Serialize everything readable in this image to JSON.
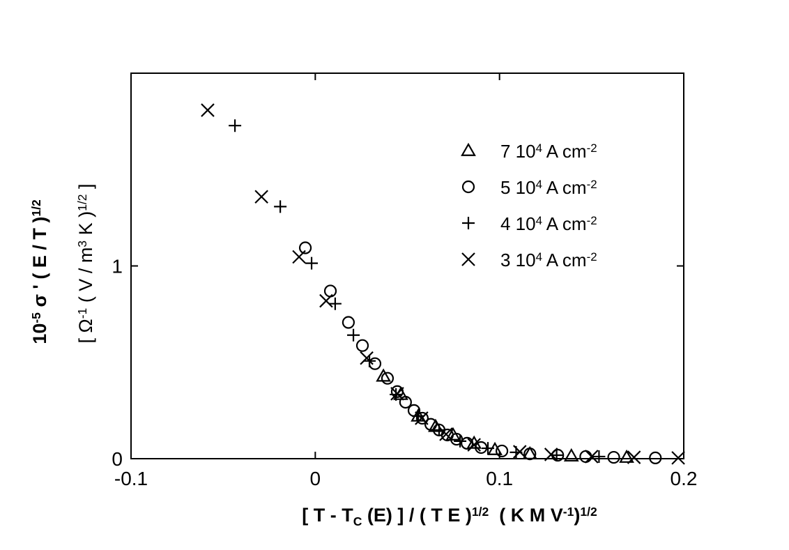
{
  "chart_data": {
    "type": "scatter",
    "xlabel": [
      "[ T - T",
      {
        "sub": "C"
      },
      " (E) ] / ( T E )",
      {
        "sup": "1/2"
      },
      "  ( K M V",
      {
        "sup": "-1"
      },
      ")",
      {
        "sup": "1/2"
      }
    ],
    "ylabel": [
      [
        "10",
        {
          "sup": "-5"
        },
        " σ ' ( E / T )",
        {
          "sup": "1/2"
        }
      ],
      [
        "[ Ω",
        {
          "sup": "-1"
        },
        " ( V / m",
        {
          "sup": "3"
        },
        " K )",
        {
          "sup": "1/2"
        },
        " ]"
      ]
    ],
    "xlim": [
      -0.1,
      0.2
    ],
    "xticks": [
      -0.1,
      0,
      0.1,
      0.2
    ],
    "ylim": [
      0,
      2
    ],
    "yticks": [
      0,
      1
    ],
    "legend": "upper right",
    "series": [
      {
        "name": [
          "7 10",
          {
            "sup": "4"
          },
          " A cm",
          {
            "sup": "-2"
          }
        ],
        "marker": "triangle",
        "color": "#000000",
        "x": [
          0.037,
          0.0464,
          0.0559,
          0.0653,
          0.0748,
          0.0862,
          0.0975,
          0.1165,
          0.139,
          0.169
        ],
        "values": [
          0.428,
          0.333,
          0.221,
          0.167,
          0.123,
          0.08,
          0.047,
          0.025,
          0.014,
          0.007
        ]
      },
      {
        "name": [
          "5 10",
          {
            "sup": "4"
          },
          " A cm",
          {
            "sup": "-2"
          }
        ],
        "marker": "circle",
        "color": "#000000",
        "x": [
          -0.0054,
          0.0082,
          0.018,
          0.0256,
          0.0324,
          0.0392,
          0.0445,
          0.049,
          0.0536,
          0.0581,
          0.0627,
          0.0672,
          0.0717,
          0.0767,
          0.0824,
          0.09,
          0.1013,
          0.1165,
          0.1316,
          0.1468,
          0.162,
          0.1846
        ],
        "values": [
          1.094,
          0.87,
          0.707,
          0.587,
          0.493,
          0.417,
          0.348,
          0.293,
          0.25,
          0.21,
          0.178,
          0.149,
          0.123,
          0.101,
          0.08,
          0.058,
          0.04,
          0.025,
          0.018,
          0.011,
          0.007,
          0.004
        ]
      },
      {
        "name": [
          "4 10",
          {
            "sup": "4"
          },
          " A cm",
          {
            "sup": "-2"
          }
        ],
        "marker": "plus",
        "color": "#000000",
        "x": [
          -0.0436,
          -0.019,
          -0.002,
          0.0108,
          0.0207,
          0.0294,
          0.0438,
          0.0559,
          0.0672,
          0.0786,
          0.0937,
          0.109,
          0.131,
          0.154
        ],
        "values": [
          1.728,
          1.308,
          1.014,
          0.804,
          0.641,
          0.507,
          0.333,
          0.221,
          0.149,
          0.091,
          0.054,
          0.033,
          0.018,
          0.011
        ]
      },
      {
        "name": [
          "3 10",
          {
            "sup": "4"
          },
          " A cm",
          {
            "sup": "-2"
          }
        ],
        "marker": "cross",
        "color": "#000000",
        "x": [
          -0.0584,
          -0.0292,
          -0.0088,
          0.0059,
          0.0279,
          0.0445,
          0.0577,
          0.071,
          0.0862,
          0.111,
          0.128,
          0.15,
          0.173,
          0.197
        ],
        "values": [
          1.808,
          1.359,
          1.047,
          0.819,
          0.522,
          0.337,
          0.21,
          0.127,
          0.072,
          0.036,
          0.022,
          0.011,
          0.007,
          0.004
        ]
      }
    ]
  }
}
